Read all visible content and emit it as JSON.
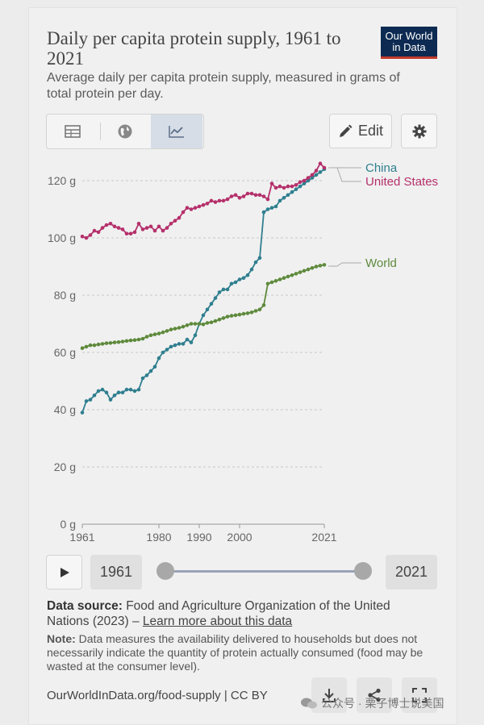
{
  "header": {
    "title": "Daily per capita protein supply, 1961 to 2021",
    "subtitle": "Average daily per capita protein supply, measured in grams of total protein per day.",
    "logo_line1": "Our World",
    "logo_line2": "in Data"
  },
  "toolbar": {
    "tabs": [
      "table",
      "map",
      "chart"
    ],
    "active_tab": "chart",
    "edit_label": "Edit"
  },
  "timeline": {
    "start_year": "1961",
    "end_year": "2021"
  },
  "footer": {
    "source_label": "Data source:",
    "source_text": "Food and Agriculture Organization of the United Nations (2023) –",
    "source_link": "Learn more about this data",
    "note_label": "Note:",
    "note_text": "Data measures the availability delivered to households but does not necessarily indicate the quantity of protein actually consumed (food may be wasted at the consumer level).",
    "license": "OurWorldInData.org/food-supply | CC BY",
    "watermark": "公众号 · 栗子博士说美国"
  },
  "colors": {
    "china": "#2f7f8f",
    "united_states": "#b5306b",
    "world": "#5e8a3c"
  },
  "chart_data": {
    "type": "line",
    "title": "Daily per capita protein supply, 1961 to 2021",
    "ylabel": "",
    "ylim": [
      0,
      125
    ],
    "yticks": [
      0,
      20,
      40,
      60,
      80,
      100,
      120
    ],
    "ytick_labels": [
      "0 g",
      "20 g",
      "40 g",
      "60 g",
      "80 g",
      "100 g",
      "120 g"
    ],
    "xlim": [
      1961,
      2021
    ],
    "xticks": [
      1961,
      1980,
      1990,
      2000,
      2021
    ],
    "grid": true,
    "legend": "right-end labels",
    "x": [
      1961,
      1962,
      1963,
      1964,
      1965,
      1966,
      1967,
      1968,
      1969,
      1970,
      1971,
      1972,
      1973,
      1974,
      1975,
      1976,
      1977,
      1978,
      1979,
      1980,
      1981,
      1982,
      1983,
      1984,
      1985,
      1986,
      1987,
      1988,
      1989,
      1990,
      1991,
      1992,
      1993,
      1994,
      1995,
      1996,
      1997,
      1998,
      1999,
      2000,
      2001,
      2002,
      2003,
      2004,
      2005,
      2006,
      2007,
      2008,
      2009,
      2010,
      2011,
      2012,
      2013,
      2014,
      2015,
      2016,
      2017,
      2018,
      2019,
      2020,
      2021
    ],
    "series": [
      {
        "name": "China",
        "color": "#2f7f8f",
        "values": [
          39,
          43,
          43.5,
          45,
          46.5,
          47,
          46,
          43.5,
          45,
          46,
          46,
          47,
          47,
          46.5,
          47,
          51,
          52,
          53.5,
          55,
          58,
          60,
          61,
          62,
          62.5,
          63,
          63,
          64.5,
          63.5,
          66,
          70,
          73,
          75,
          77,
          79,
          81,
          82,
          82,
          84,
          84.5,
          85.5,
          86,
          87,
          89,
          91.5,
          93,
          109,
          110,
          110.5,
          111,
          113,
          114,
          115,
          116,
          117,
          118,
          119,
          120,
          121,
          122,
          123,
          124
        ]
      },
      {
        "name": "United States",
        "color": "#b5306b",
        "values": [
          100.5,
          100,
          101,
          102.5,
          102,
          103.5,
          104.5,
          105,
          104,
          103.5,
          103,
          101.5,
          101.5,
          102,
          105,
          103,
          103.5,
          104,
          102.5,
          104,
          102.5,
          103.5,
          105,
          106,
          107,
          109,
          110.5,
          110,
          110.5,
          111,
          111.5,
          112,
          113,
          112.5,
          113,
          113,
          113.5,
          114.5,
          115,
          114,
          114.5,
          115.5,
          115.5,
          115,
          115,
          114.5,
          113.5,
          119,
          117.5,
          118,
          117.5,
          118,
          118,
          118.5,
          119.5,
          120,
          121,
          122,
          123.5,
          126,
          124.5
        ]
      },
      {
        "name": "World",
        "color": "#5e8a3c",
        "values": [
          61.5,
          62,
          62.5,
          62.5,
          62.8,
          63,
          63.2,
          63.3,
          63.5,
          63.6,
          63.8,
          64,
          64.2,
          64.3,
          64.5,
          64.8,
          65.5,
          66,
          66.3,
          66.6,
          67,
          67.5,
          68,
          68.3,
          68.6,
          69,
          69.5,
          70,
          70,
          70,
          69.8,
          70.3,
          70.5,
          71,
          71.5,
          72,
          72.5,
          72.8,
          73,
          73.2,
          73.5,
          73.7,
          74,
          74.5,
          75,
          76.5,
          84,
          84.5,
          85,
          85.5,
          86,
          86.5,
          87,
          87.5,
          88,
          88.5,
          89,
          89.5,
          90,
          90.3,
          90.6
        ]
      }
    ]
  }
}
